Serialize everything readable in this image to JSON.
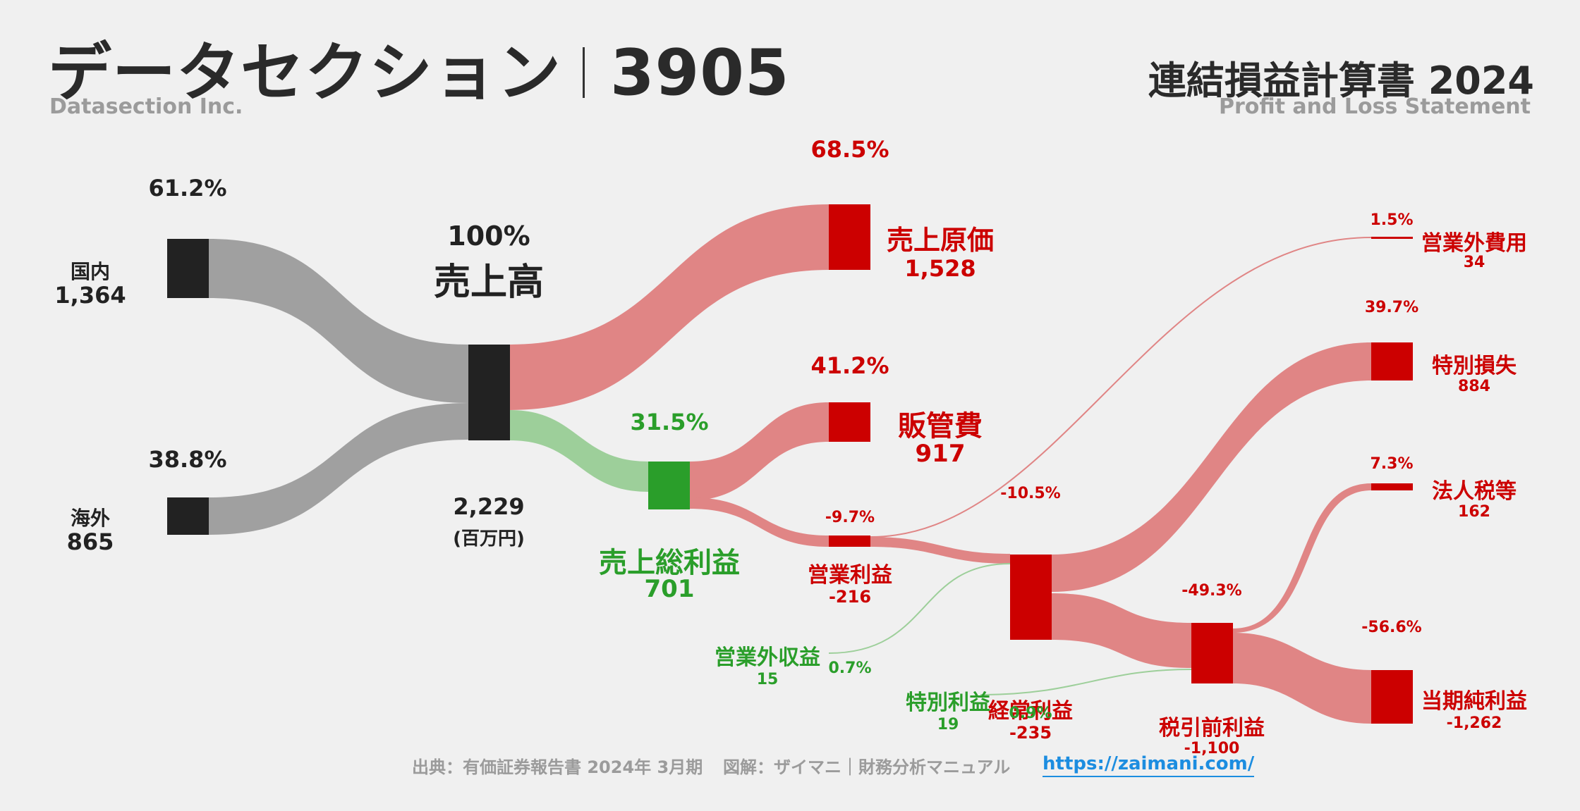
{
  "header": {
    "company_jp": "データセクション",
    "ticker": "3905",
    "company_en": "Datasection Inc.",
    "statement_jp": "連結損益計算書 2024",
    "statement_en": "Profit and Loss Statement"
  },
  "unit": "(百万円)",
  "nodes": {
    "domestic": {
      "label": "国内",
      "value": "1,364",
      "pct": "61.2%"
    },
    "overseas": {
      "label": "海外",
      "value": "865",
      "pct": "38.8%"
    },
    "revenue": {
      "label": "売上高",
      "value": "2,229",
      "pct": "100%"
    },
    "cogs": {
      "label": "売上原価",
      "value": "1,528",
      "pct": "68.5%"
    },
    "gross_profit": {
      "label": "売上総利益",
      "value": "701",
      "pct": "31.5%"
    },
    "sga": {
      "label": "販管費",
      "value": "917",
      "pct": "41.2%"
    },
    "operating_income": {
      "label": "営業利益",
      "value": "-216",
      "pct": "-9.7%"
    },
    "non_op_income": {
      "label": "営業外収益",
      "value": "15",
      "pct": "0.7%"
    },
    "non_op_expense": {
      "label": "営業外費用",
      "value": "34",
      "pct": "1.5%"
    },
    "ordinary_income": {
      "label": "経常利益",
      "value": "-235",
      "pct": "-10.5%"
    },
    "extraordinary_income": {
      "label": "特別利益",
      "value": "19",
      "pct": "0.9%"
    },
    "extraordinary_loss": {
      "label": "特別損失",
      "value": "884",
      "pct": "39.7%"
    },
    "pretax_income": {
      "label": "税引前利益",
      "value": "-1,100",
      "pct": "-49.3%"
    },
    "income_taxes": {
      "label": "法人税等",
      "value": "162",
      "pct": "7.3%"
    },
    "net_income": {
      "label": "当期純利益",
      "value": "-1,262",
      "pct": "-56.6%"
    }
  },
  "footer": {
    "source": "出典：有価証券報告書 2024年 3月期",
    "credit": "図解：ザイマニ｜財務分析マニュアル",
    "url": "https://zaimani.com/"
  },
  "colors": {
    "revenue_node": "#222222",
    "segment_flow": "#a0a0a0",
    "cost_node": "#cc0000",
    "cost_flow": "#e08585",
    "profit_node": "#2a9e2a",
    "profit_flow": "#9dcf9a",
    "background": "#f0f0f0",
    "link": "#1c8de0"
  }
}
